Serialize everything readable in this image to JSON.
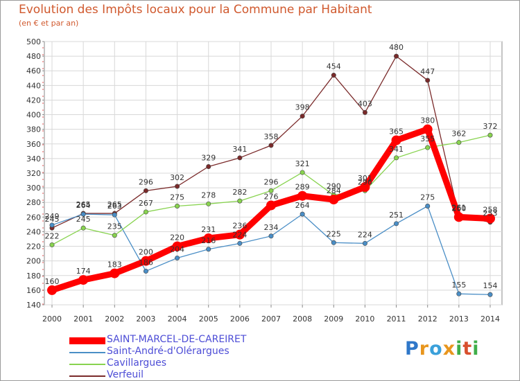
{
  "title": "Evolution des Impôts locaux pour la Commune par Habitant",
  "subtitle": "(en € et par an)",
  "logo": {
    "text": "Proxiti",
    "letters": [
      "P",
      "r",
      "o",
      "x",
      "i",
      "t",
      "i"
    ],
    "colors": [
      "#2f77c9",
      "#e8961e",
      "#3aa0da",
      "#e8961e",
      "#3fae49",
      "#d8502e",
      "#3fae49"
    ]
  },
  "chart_data": {
    "type": "line",
    "title": "Evolution des Impôts locaux pour la Commune par Habitant",
    "subtitle": "(en € et par an)",
    "xlabel": "",
    "ylabel": "",
    "x": [
      2000,
      2001,
      2002,
      2003,
      2004,
      2005,
      2006,
      2007,
      2008,
      2009,
      2010,
      2011,
      2012,
      2013,
      2014
    ],
    "ylim": [
      140,
      500
    ],
    "yticks": [
      140,
      160,
      180,
      200,
      220,
      240,
      260,
      280,
      300,
      320,
      340,
      360,
      380,
      400,
      420,
      440,
      460,
      480,
      500
    ],
    "grid": true,
    "legend_position": "bottom-left",
    "series": [
      {
        "name": "SAINT-MARCEL-DE-CAREIRET",
        "color": "#ff0000",
        "values": [
          160,
          174,
          183,
          200,
          220,
          231,
          236,
          276,
          289,
          284,
          301,
          365,
          380,
          260,
          258
        ]
      },
      {
        "name": "Saint-André-d'Olérargues",
        "color": "#4a8ec6",
        "values": [
          249,
          264,
          263,
          186,
          204,
          216,
          224,
          234,
          264,
          225,
          224,
          251,
          275,
          155,
          154
        ]
      },
      {
        "name": "Cavillargues",
        "color": "#88d34f",
        "values": [
          222,
          245,
          235,
          267,
          275,
          278,
          282,
          296,
          321,
          290,
          296,
          341,
          355,
          362,
          372
        ]
      },
      {
        "name": "Verfeuil",
        "color": "#7a2a2a",
        "values": [
          245,
          265,
          265,
          296,
          302,
          329,
          341,
          358,
          398,
          454,
          403,
          480,
          447,
          261,
          253
        ]
      }
    ]
  }
}
